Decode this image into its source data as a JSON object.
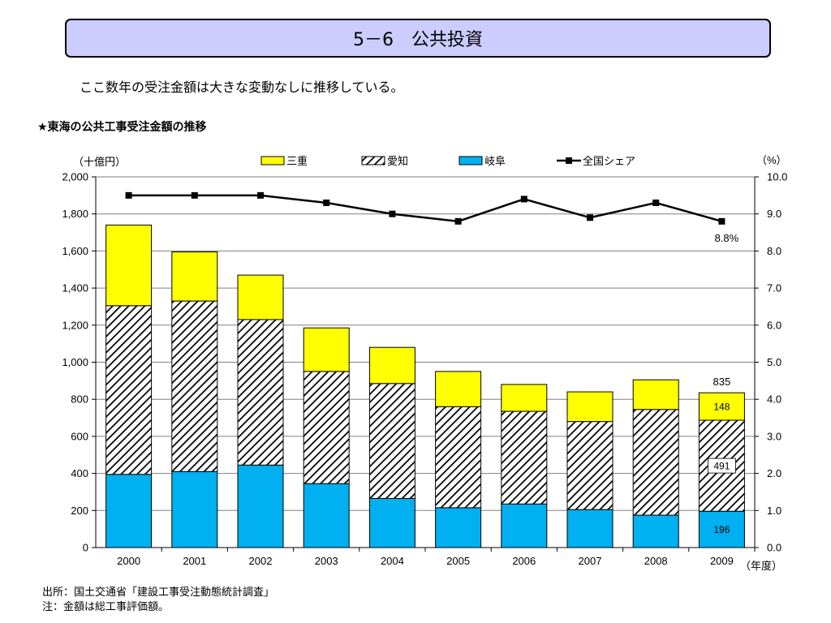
{
  "slide": {
    "title": "5－6　公共投資",
    "subtitle": "ここ数年の受注金額は大きな変動なしに推移している。",
    "chart_heading": "★東海の公共工事受注金額の推移",
    "footnotes": [
      "出所：国土交通省「建設工事受注動態統計調査」",
      "注：金額は総工事評価額。"
    ]
  },
  "chart_data": {
    "type": "bar",
    "stacked": true,
    "categories": [
      "2000",
      "2001",
      "2002",
      "2003",
      "2004",
      "2005",
      "2006",
      "2007",
      "2008",
      "2009"
    ],
    "series": [
      {
        "name": "岐阜",
        "kind": "bar",
        "color": "#00b0f0",
        "values": [
          395,
          410,
          445,
          345,
          265,
          215,
          235,
          205,
          175,
          196
        ]
      },
      {
        "name": "愛知",
        "kind": "bar",
        "pattern": "diagonal-hatch",
        "values": [
          910,
          920,
          785,
          605,
          620,
          545,
          500,
          475,
          570,
          491
        ]
      },
      {
        "name": "三重",
        "kind": "bar",
        "color": "#ffff00",
        "values": [
          435,
          265,
          240,
          235,
          195,
          190,
          145,
          160,
          160,
          148
        ]
      },
      {
        "name": "全国シェア",
        "kind": "line",
        "axis": "right",
        "color": "#000000",
        "values": [
          9.5,
          9.5,
          9.5,
          9.3,
          9.0,
          8.8,
          9.4,
          8.9,
          9.3,
          8.8
        ]
      }
    ],
    "y_left": {
      "label": "（十億円）",
      "min": 0,
      "max": 2000,
      "step": 200,
      "tick_labels": [
        "0",
        "200",
        "400",
        "600",
        "800",
        "1,000",
        "1,200",
        "1,400",
        "1,600",
        "1,800",
        "2,000"
      ]
    },
    "y_right": {
      "label": "（%）",
      "min": 0,
      "max": 10,
      "step": 1,
      "tick_labels": [
        "0.0",
        "1.0",
        "2.0",
        "3.0",
        "4.0",
        "5.0",
        "6.0",
        "7.0",
        "8.0",
        "9.0",
        "10.0"
      ]
    },
    "x_unit_label": "（年度）",
    "grid": true,
    "legend_position": "top",
    "annotations": {
      "last_total": "835",
      "last_mie": "148",
      "last_aichi": "491",
      "last_gifu": "196",
      "last_share": "8.8%"
    }
  }
}
